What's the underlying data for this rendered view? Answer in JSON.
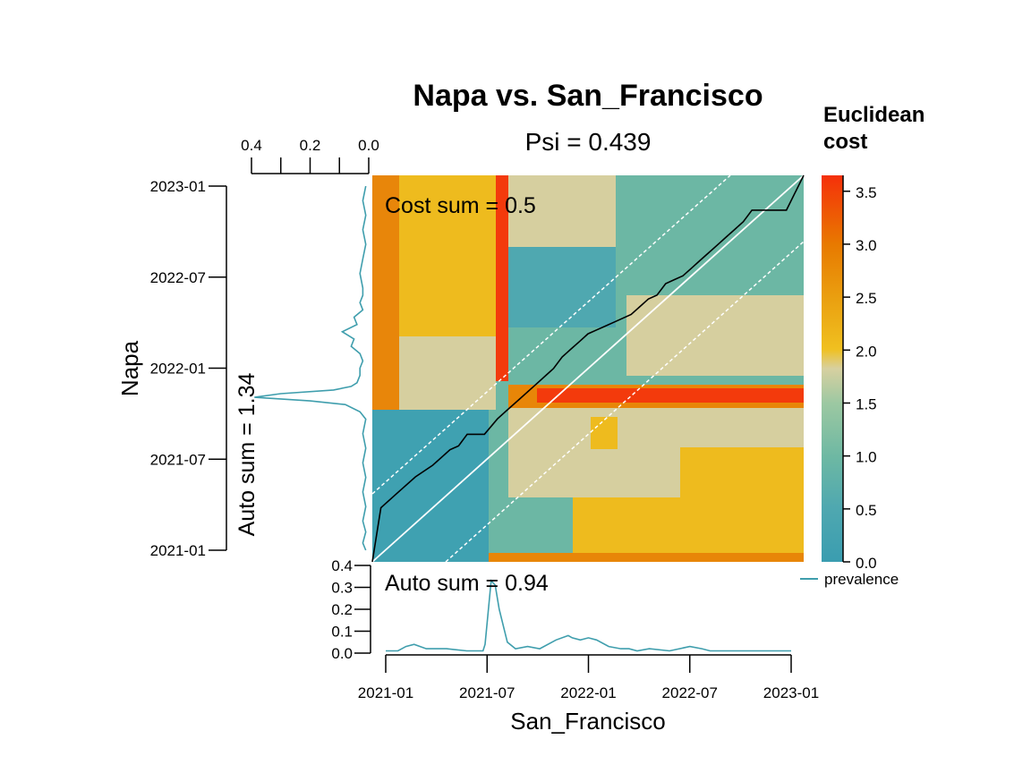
{
  "chart_data": {
    "type": "heatmap",
    "title": "Napa vs. San_Francisco",
    "subtitle": "Psi = 0.439",
    "xlabel": "San_Francisco",
    "ylabel": "Napa",
    "x_tick_labels": [
      "2021-01",
      "2021-07",
      "2022-01",
      "2022-07",
      "2023-01"
    ],
    "y_tick_labels": [
      "2021-01",
      "2021-07",
      "2022-01",
      "2022-07",
      "2023-01"
    ],
    "cost_sum_label": "Cost sum =  0.5",
    "colorbar": {
      "title_line1": "Euclidean",
      "title_line2": "cost",
      "range": [
        0.0,
        3.65
      ],
      "ticks": [
        0.0,
        0.5,
        1.0,
        1.5,
        2.0,
        2.5,
        3.0,
        3.5
      ],
      "tick_labels": [
        "0.0",
        "0.5",
        "1.0",
        "1.5",
        "2.0",
        "2.5",
        "3.0",
        "3.5"
      ],
      "colors": [
        "#3a9db0",
        "#4fa8b0",
        "#6db8a3",
        "#8fc4a0",
        "#d7d0a0",
        "#f0c020",
        "#eaa010",
        "#e87a00",
        "#f5300a"
      ]
    },
    "heatmap_zones_description_colors": {
      "low": "#3fa1b1",
      "low_mid": "#6cb7a4",
      "mid": "#d6cf9f",
      "mid_high": "#eebb1e",
      "high": "#e88608",
      "peak": "#f33a0c"
    },
    "warping_path": {
      "x": [
        0.0,
        0.02,
        0.06,
        0.1,
        0.14,
        0.18,
        0.2,
        0.22,
        0.26,
        0.29,
        0.31,
        0.34,
        0.38,
        0.4,
        0.42,
        0.44,
        0.46,
        0.48,
        0.5,
        0.52,
        0.54,
        0.56,
        0.58,
        0.6,
        0.62,
        0.64,
        0.66,
        0.68,
        0.7,
        0.72,
        0.74,
        0.76,
        0.78,
        0.8,
        0.82,
        0.84,
        0.86,
        0.88,
        0.92,
        0.96,
        1.0
      ],
      "y": [
        0.0,
        0.14,
        0.18,
        0.22,
        0.25,
        0.29,
        0.3,
        0.33,
        0.33,
        0.37,
        0.39,
        0.42,
        0.46,
        0.48,
        0.5,
        0.53,
        0.55,
        0.57,
        0.59,
        0.6,
        0.61,
        0.62,
        0.63,
        0.64,
        0.66,
        0.68,
        0.69,
        0.72,
        0.73,
        0.74,
        0.76,
        0.78,
        0.8,
        0.82,
        0.84,
        0.86,
        0.88,
        0.91,
        0.91,
        0.91,
        1.0
      ]
    },
    "top_axis_tick_labels": [
      "0.4",
      "0.2",
      "0.0"
    ],
    "left_auto_sum_label": "Auto sum =  1.34",
    "left_prevalence": {
      "y": [
        0.0,
        0.02,
        0.05,
        0.08,
        0.12,
        0.16,
        0.2,
        0.24,
        0.28,
        0.32,
        0.36,
        0.38,
        0.4,
        0.41,
        0.42,
        0.43,
        0.44,
        0.45,
        0.46,
        0.48,
        0.5,
        0.52,
        0.54,
        0.56,
        0.58,
        0.6,
        0.62,
        0.64,
        0.66,
        0.68,
        0.7,
        0.72,
        0.76,
        0.8,
        0.84,
        0.88,
        0.92,
        0.96,
        1.0
      ],
      "value": [
        0.01,
        0.02,
        0.01,
        0.02,
        0.01,
        0.02,
        0.01,
        0.02,
        0.01,
        0.02,
        0.01,
        0.03,
        0.08,
        0.2,
        0.39,
        0.3,
        0.12,
        0.06,
        0.04,
        0.03,
        0.03,
        0.02,
        0.03,
        0.06,
        0.05,
        0.09,
        0.04,
        0.05,
        0.02,
        0.03,
        0.02,
        0.02,
        0.03,
        0.02,
        0.01,
        0.02,
        0.01,
        0.02,
        0.01
      ]
    },
    "bottom_axis_tick_labels": [
      "0.0",
      "0.1",
      "0.2",
      "0.3",
      "0.4"
    ],
    "bottom_auto_sum_label": "Auto sum =  0.94",
    "bottom_prevalence": {
      "x": [
        0.0,
        0.03,
        0.05,
        0.07,
        0.1,
        0.15,
        0.2,
        0.24,
        0.245,
        0.26,
        0.27,
        0.28,
        0.3,
        0.32,
        0.35,
        0.38,
        0.42,
        0.45,
        0.46,
        0.48,
        0.5,
        0.52,
        0.55,
        0.58,
        0.6,
        0.62,
        0.65,
        0.7,
        0.75,
        0.78,
        0.8,
        0.85,
        0.9,
        0.95,
        1.0
      ],
      "value": [
        0.01,
        0.01,
        0.03,
        0.04,
        0.02,
        0.02,
        0.01,
        0.01,
        0.04,
        0.33,
        0.31,
        0.2,
        0.05,
        0.02,
        0.03,
        0.02,
        0.06,
        0.08,
        0.07,
        0.06,
        0.07,
        0.06,
        0.03,
        0.02,
        0.02,
        0.01,
        0.02,
        0.01,
        0.03,
        0.02,
        0.01,
        0.01,
        0.01,
        0.01,
        0.01
      ]
    },
    "legend_entry": "prevalence",
    "line_color": "#3f9ead"
  }
}
